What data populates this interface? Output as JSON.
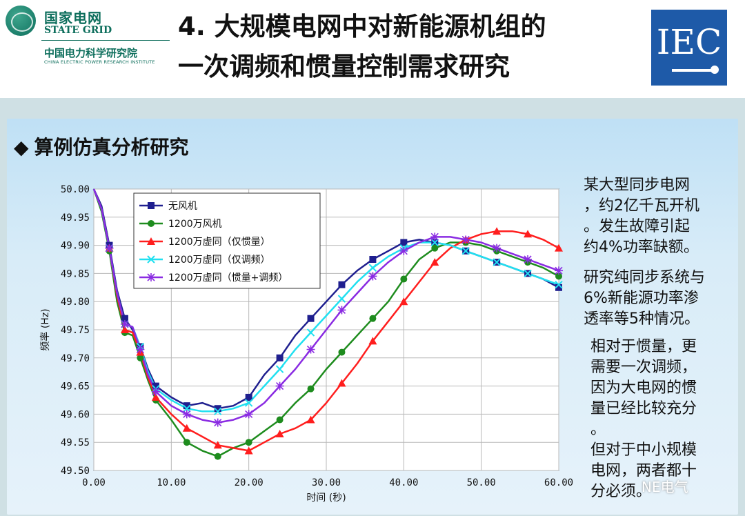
{
  "header": {
    "logo_cn": "国家电网",
    "logo_en": "STATE GRID",
    "institute_cn": "中国电力科学研究院",
    "institute_en": "CHINA ELECTRIC POWER RESEARCH INSTITUTE",
    "title_line1": "4. 大规模电网中对新能源机组的",
    "title_line2": "一次调频和惯量控制需求研究",
    "iec_logo": "IEC"
  },
  "section_title": "算例仿真分析研究",
  "right_text": {
    "p1": [
      "某大型同步电网",
      "，约2亿千瓦开机",
      "。发生故障引起",
      "约4%功率缺额。"
    ],
    "p2": [
      "研究纯同步系统与",
      "6%新能源功率渗",
      "透率等5种情况。"
    ],
    "p3": [
      "相对于惯量，更",
      "需要一次调频，",
      "因为大电网的惯",
      "量已经比较充分",
      "。",
      "但对于中小规模",
      "电网，两者都十",
      "分必须。"
    ]
  },
  "watermark": "NE电气",
  "colors": {
    "s1": "#1f1f8f",
    "s2": "#1e8c1e",
    "s3": "#ff1e1e",
    "s4": "#20e0f0",
    "s5": "#8a2be2"
  },
  "chart_data": {
    "type": "line",
    "xlabel": "时间 (秒)",
    "ylabel": "频率 (Hz)",
    "xlim": [
      0,
      60
    ],
    "ylim": [
      49.5,
      50.0
    ],
    "x_ticks": [
      "0.00",
      "10.00",
      "20.00",
      "30.00",
      "40.00",
      "50.00",
      "60.00"
    ],
    "y_ticks": [
      "50.00",
      "49.95",
      "49.90",
      "49.85",
      "49.80",
      "49.75",
      "49.70",
      "49.65",
      "49.60",
      "49.55",
      "49.50"
    ],
    "grid": true,
    "legend_position": "top-left",
    "series": [
      {
        "name": "无风机",
        "marker": "square",
        "color": "#1f1f8f",
        "points": [
          [
            0,
            50.0
          ],
          [
            1,
            49.97
          ],
          [
            2,
            49.9
          ],
          [
            3,
            49.82
          ],
          [
            4,
            49.77
          ],
          [
            5,
            49.75
          ],
          [
            6,
            49.72
          ],
          [
            7,
            49.68
          ],
          [
            8,
            49.65
          ],
          [
            10,
            49.63
          ],
          [
            12,
            49.615
          ],
          [
            14,
            49.62
          ],
          [
            16,
            49.61
          ],
          [
            18,
            49.615
          ],
          [
            20,
            49.63
          ],
          [
            22,
            49.67
          ],
          [
            24,
            49.7
          ],
          [
            26,
            49.74
          ],
          [
            28,
            49.77
          ],
          [
            30,
            49.8
          ],
          [
            32,
            49.83
          ],
          [
            34,
            49.855
          ],
          [
            36,
            49.875
          ],
          [
            38,
            49.89
          ],
          [
            40,
            49.905
          ],
          [
            42,
            49.91
          ],
          [
            44,
            49.905
          ],
          [
            46,
            49.9
          ],
          [
            48,
            49.89
          ],
          [
            50,
            49.88
          ],
          [
            52,
            49.87
          ],
          [
            54,
            49.86
          ],
          [
            56,
            49.85
          ],
          [
            58,
            49.84
          ],
          [
            60,
            49.825
          ]
        ]
      },
      {
        "name": "1200万风机",
        "marker": "circle",
        "color": "#1e8c1e",
        "points": [
          [
            0,
            50.0
          ],
          [
            1,
            49.96
          ],
          [
            2,
            49.89
          ],
          [
            3,
            49.8
          ],
          [
            4,
            49.745
          ],
          [
            5,
            49.74
          ],
          [
            6,
            49.7
          ],
          [
            7,
            49.66
          ],
          [
            8,
            49.625
          ],
          [
            10,
            49.59
          ],
          [
            12,
            49.55
          ],
          [
            14,
            49.535
          ],
          [
            16,
            49.525
          ],
          [
            18,
            49.54
          ],
          [
            20,
            49.55
          ],
          [
            22,
            49.57
          ],
          [
            24,
            49.59
          ],
          [
            26,
            49.62
          ],
          [
            28,
            49.645
          ],
          [
            30,
            49.68
          ],
          [
            32,
            49.71
          ],
          [
            34,
            49.74
          ],
          [
            36,
            49.77
          ],
          [
            38,
            49.8
          ],
          [
            40,
            49.84
          ],
          [
            42,
            49.875
          ],
          [
            44,
            49.895
          ],
          [
            46,
            49.905
          ],
          [
            48,
            49.905
          ],
          [
            50,
            49.9
          ],
          [
            52,
            49.89
          ],
          [
            54,
            49.88
          ],
          [
            56,
            49.87
          ],
          [
            58,
            49.86
          ],
          [
            60,
            49.845
          ]
        ]
      },
      {
        "name": "1200万虚同（仅惯量）",
        "marker": "triangle",
        "color": "#ff1e1e",
        "points": [
          [
            0,
            50.0
          ],
          [
            1,
            49.965
          ],
          [
            2,
            49.895
          ],
          [
            3,
            49.81
          ],
          [
            4,
            49.75
          ],
          [
            5,
            49.745
          ],
          [
            6,
            49.71
          ],
          [
            7,
            49.665
          ],
          [
            8,
            49.63
          ],
          [
            10,
            49.6
          ],
          [
            12,
            49.575
          ],
          [
            14,
            49.56
          ],
          [
            16,
            49.545
          ],
          [
            18,
            49.54
          ],
          [
            20,
            49.535
          ],
          [
            22,
            49.55
          ],
          [
            24,
            49.565
          ],
          [
            26,
            49.575
          ],
          [
            28,
            49.59
          ],
          [
            30,
            49.62
          ],
          [
            32,
            49.655
          ],
          [
            34,
            49.69
          ],
          [
            36,
            49.73
          ],
          [
            38,
            49.765
          ],
          [
            40,
            49.8
          ],
          [
            42,
            49.835
          ],
          [
            44,
            49.87
          ],
          [
            46,
            49.895
          ],
          [
            48,
            49.91
          ],
          [
            50,
            49.92
          ],
          [
            52,
            49.925
          ],
          [
            54,
            49.925
          ],
          [
            56,
            49.92
          ],
          [
            58,
            49.91
          ],
          [
            60,
            49.895
          ]
        ]
      },
      {
        "name": "1200万虚同（仅调频）",
        "marker": "x",
        "color": "#20e0f0",
        "points": [
          [
            0,
            50.0
          ],
          [
            1,
            49.965
          ],
          [
            2,
            49.895
          ],
          [
            3,
            49.815
          ],
          [
            4,
            49.76
          ],
          [
            5,
            49.755
          ],
          [
            6,
            49.72
          ],
          [
            7,
            49.675
          ],
          [
            8,
            49.645
          ],
          [
            10,
            49.625
          ],
          [
            12,
            49.61
          ],
          [
            14,
            49.605
          ],
          [
            16,
            49.605
          ],
          [
            18,
            49.61
          ],
          [
            20,
            49.62
          ],
          [
            22,
            49.65
          ],
          [
            24,
            49.68
          ],
          [
            26,
            49.715
          ],
          [
            28,
            49.745
          ],
          [
            30,
            49.775
          ],
          [
            32,
            49.805
          ],
          [
            34,
            49.835
          ],
          [
            36,
            49.86
          ],
          [
            38,
            49.88
          ],
          [
            40,
            49.895
          ],
          [
            42,
            49.905
          ],
          [
            44,
            49.905
          ],
          [
            46,
            49.9
          ],
          [
            48,
            49.89
          ],
          [
            50,
            49.88
          ],
          [
            52,
            49.87
          ],
          [
            54,
            49.86
          ],
          [
            56,
            49.85
          ],
          [
            58,
            49.84
          ],
          [
            60,
            49.83
          ]
        ]
      },
      {
        "name": "1200万虚同（惯量+调频）",
        "marker": "star",
        "color": "#8a2be2",
        "points": [
          [
            0,
            50.0
          ],
          [
            1,
            49.965
          ],
          [
            2,
            49.895
          ],
          [
            3,
            49.815
          ],
          [
            4,
            49.76
          ],
          [
            5,
            49.755
          ],
          [
            6,
            49.715
          ],
          [
            7,
            49.67
          ],
          [
            8,
            49.64
          ],
          [
            10,
            49.615
          ],
          [
            12,
            49.6
          ],
          [
            14,
            49.59
          ],
          [
            16,
            49.585
          ],
          [
            18,
            49.59
          ],
          [
            20,
            49.6
          ],
          [
            22,
            49.62
          ],
          [
            24,
            49.65
          ],
          [
            26,
            49.68
          ],
          [
            28,
            49.715
          ],
          [
            30,
            49.75
          ],
          [
            32,
            49.785
          ],
          [
            34,
            49.815
          ],
          [
            36,
            49.845
          ],
          [
            38,
            49.87
          ],
          [
            40,
            49.89
          ],
          [
            42,
            49.905
          ],
          [
            44,
            49.915
          ],
          [
            46,
            49.915
          ],
          [
            48,
            49.91
          ],
          [
            50,
            49.905
          ],
          [
            52,
            49.895
          ],
          [
            54,
            49.885
          ],
          [
            56,
            49.875
          ],
          [
            58,
            49.865
          ],
          [
            60,
            49.855
          ]
        ]
      }
    ]
  }
}
